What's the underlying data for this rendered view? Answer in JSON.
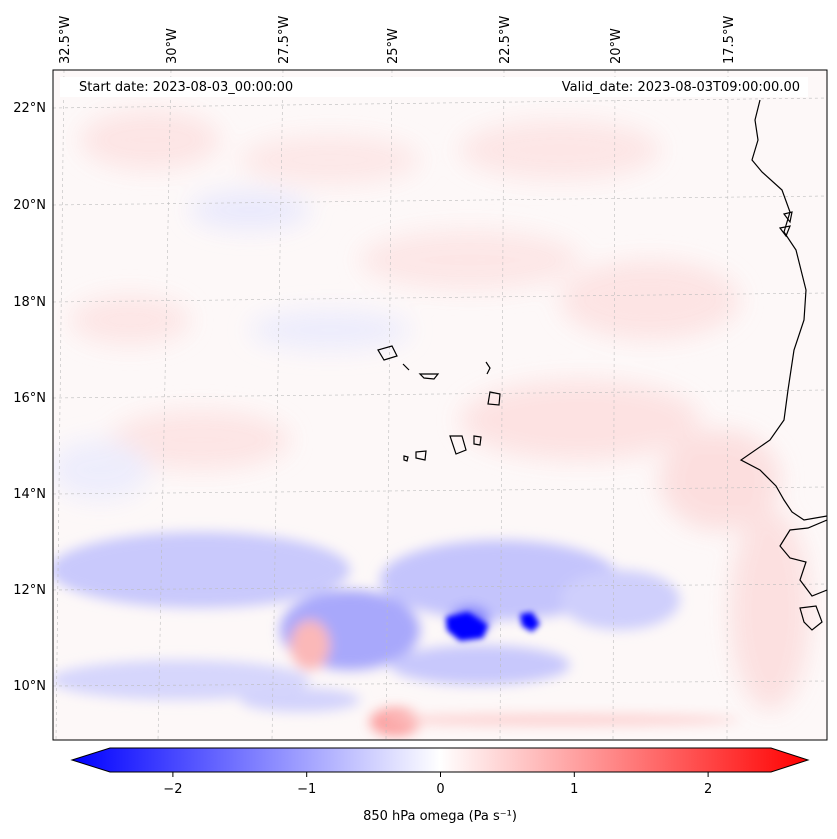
{
  "map": {
    "title_left": "Start date: 2023-08-03_00:00:00",
    "title_right": "Valid_date: 2023-08-03T09:00:00.00",
    "lon_ticks": [
      "32.5°W",
      "30°W",
      "27.5°W",
      "25°W",
      "22.5°W",
      "20°W",
      "17.5°W"
    ],
    "lat_ticks": [
      "22°N",
      "20°N",
      "18°N",
      "16°N",
      "14°N",
      "12°N",
      "10°N"
    ],
    "colormap": "bwr",
    "colors": {
      "negative": "#0000ff",
      "zero": "#ffffff",
      "positive": "#ff0000",
      "coast": "#000000",
      "grid": "#b0b0b0"
    }
  },
  "colorbar": {
    "label": "850 hPa omega (Pa s⁻¹)",
    "ticks": [
      "−2",
      "−1",
      "0",
      "1",
      "2"
    ],
    "tick_values": [
      -2,
      -1,
      0,
      1,
      2
    ],
    "range": [
      -2.5,
      2.5
    ],
    "extend": "both"
  }
}
